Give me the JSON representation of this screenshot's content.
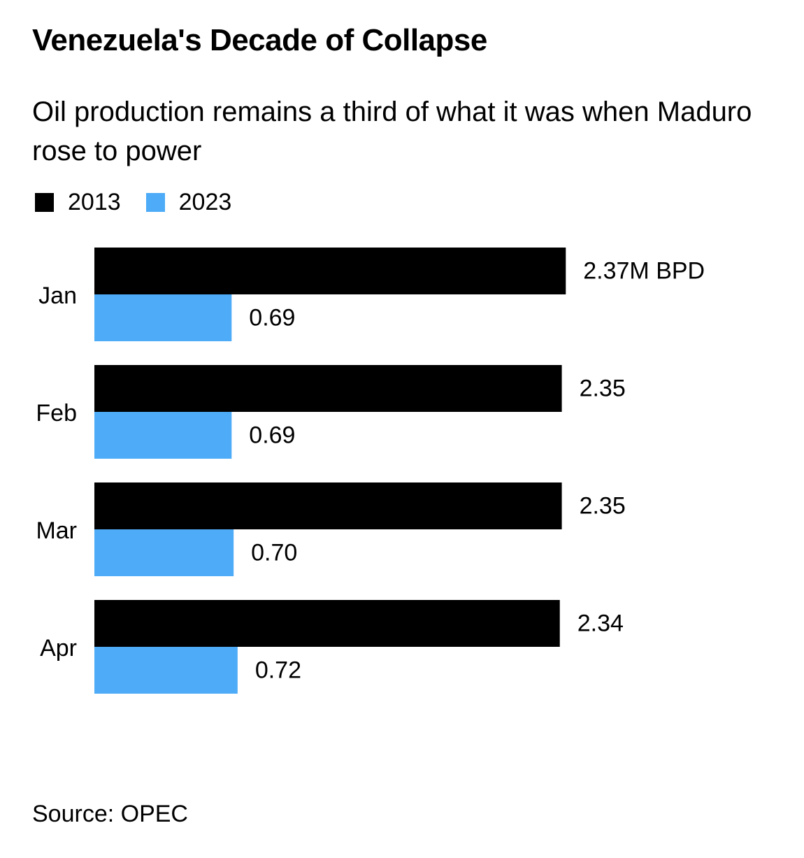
{
  "chart_data": {
    "type": "bar",
    "orientation": "horizontal",
    "title": "Venezuela's Decade of Collapse",
    "subtitle": "Oil production remains a third of what it was when Maduro rose to power",
    "categories": [
      "Jan",
      "Feb",
      "Mar",
      "Apr"
    ],
    "series": [
      {
        "name": "2013",
        "color": "#000000",
        "values": [
          2.37,
          2.35,
          2.35,
          2.34
        ],
        "labels": [
          "2.37M BPD",
          "2.35",
          "2.35",
          "2.34"
        ]
      },
      {
        "name": "2023",
        "color": "#4DABF7",
        "values": [
          0.69,
          0.69,
          0.7,
          0.72
        ],
        "labels": [
          "0.69",
          "0.69",
          "0.70",
          "0.72"
        ]
      }
    ],
    "xlim": [
      0,
      2.37
    ],
    "grid": false,
    "legend_position": "top-left",
    "source": "Source: OPEC"
  }
}
